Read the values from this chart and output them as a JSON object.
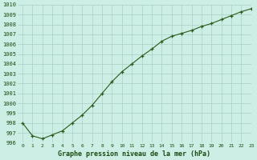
{
  "x": [
    0,
    1,
    2,
    3,
    4,
    5,
    6,
    7,
    8,
    9,
    10,
    11,
    12,
    13,
    14,
    15,
    16,
    17,
    18,
    19,
    20,
    21,
    22,
    23
  ],
  "y": [
    998.0,
    996.7,
    996.4,
    996.8,
    997.2,
    998.0,
    998.8,
    999.8,
    1001.0,
    1002.2,
    1003.2,
    1004.0,
    1004.8,
    1005.5,
    1006.3,
    1006.8,
    1007.1,
    1007.4,
    1007.8,
    1008.1,
    1008.5,
    1008.9,
    1009.3,
    1009.6
  ],
  "line_color": "#2d5a1b",
  "marker": "+",
  "marker_color": "#2d5a1b",
  "bg_color": "#cceee4",
  "grid_color": "#aacfc4",
  "xlabel": "Graphe pression niveau de la mer (hPa)",
  "xlabel_color": "#1a4a10",
  "tick_color": "#1a4a10",
  "ylim": [
    996,
    1010
  ],
  "xlim": [
    -0.5,
    23
  ],
  "yticks": [
    996,
    997,
    998,
    999,
    1000,
    1001,
    1002,
    1003,
    1004,
    1005,
    1006,
    1007,
    1008,
    1009,
    1010
  ],
  "xticks": [
    0,
    1,
    2,
    3,
    4,
    5,
    6,
    7,
    8,
    9,
    10,
    11,
    12,
    13,
    14,
    15,
    16,
    17,
    18,
    19,
    20,
    21,
    22,
    23
  ],
  "ytick_fontsize": 5.0,
  "xtick_fontsize": 4.5,
  "xlabel_fontsize": 6.0,
  "linewidth": 0.8,
  "markersize": 3.5,
  "markeredgewidth": 0.9
}
